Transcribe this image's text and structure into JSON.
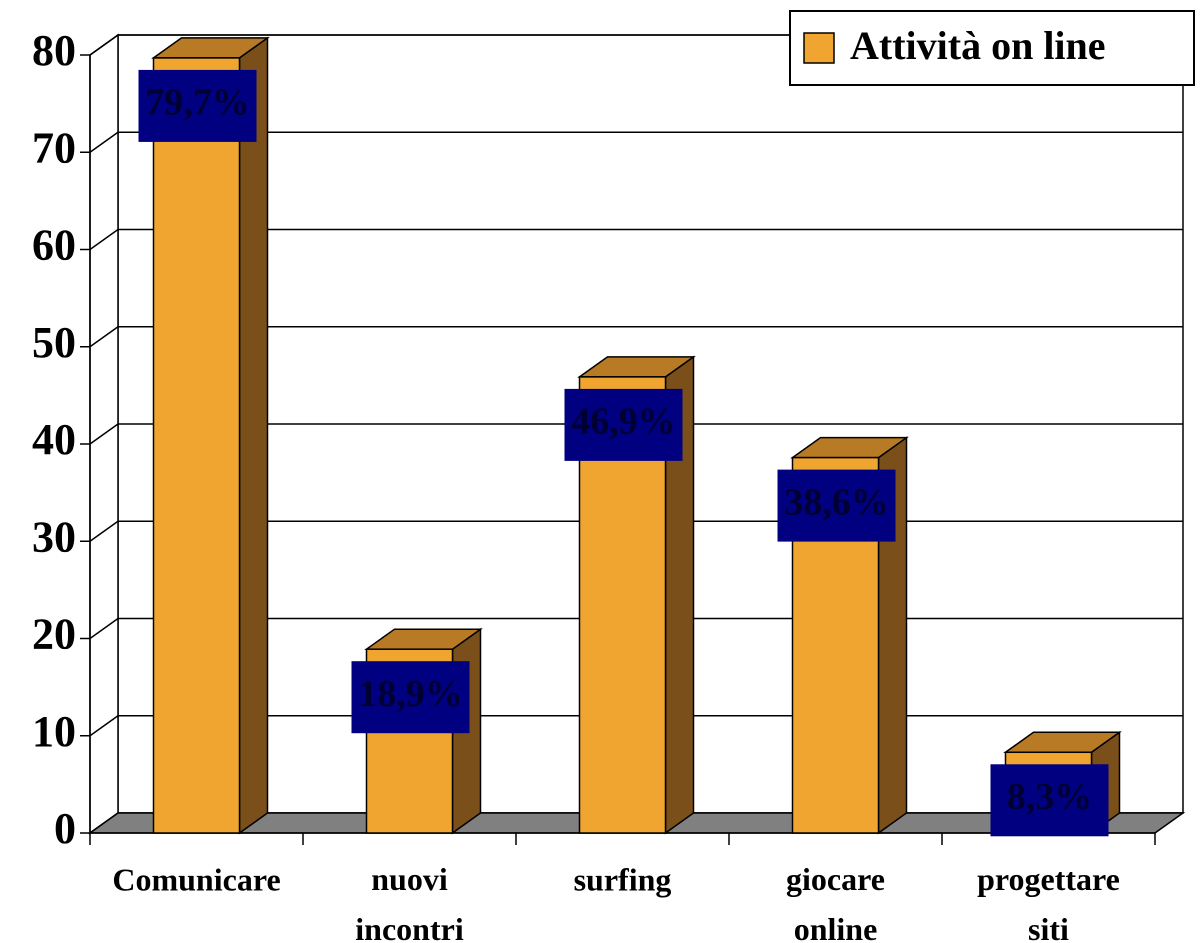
{
  "chart_data": {
    "type": "bar",
    "categories": [
      "Comunicare",
      "nuovi incontri",
      "surfing",
      "giocare online",
      "progettare siti"
    ],
    "series": [
      {
        "name": "Attività on line",
        "color": "#f0a530",
        "values": [
          79.7,
          18.9,
          46.9,
          38.6,
          8.3
        ],
        "value_labels": [
          "79,7%",
          "18,9%",
          "46,9%",
          "38,6%",
          "8,3%"
        ]
      }
    ],
    "ylim": [
      0,
      80
    ],
    "yticks": [
      0,
      10,
      20,
      30,
      40,
      50,
      60,
      70,
      80
    ],
    "grid": true,
    "legend": "top-right"
  }
}
